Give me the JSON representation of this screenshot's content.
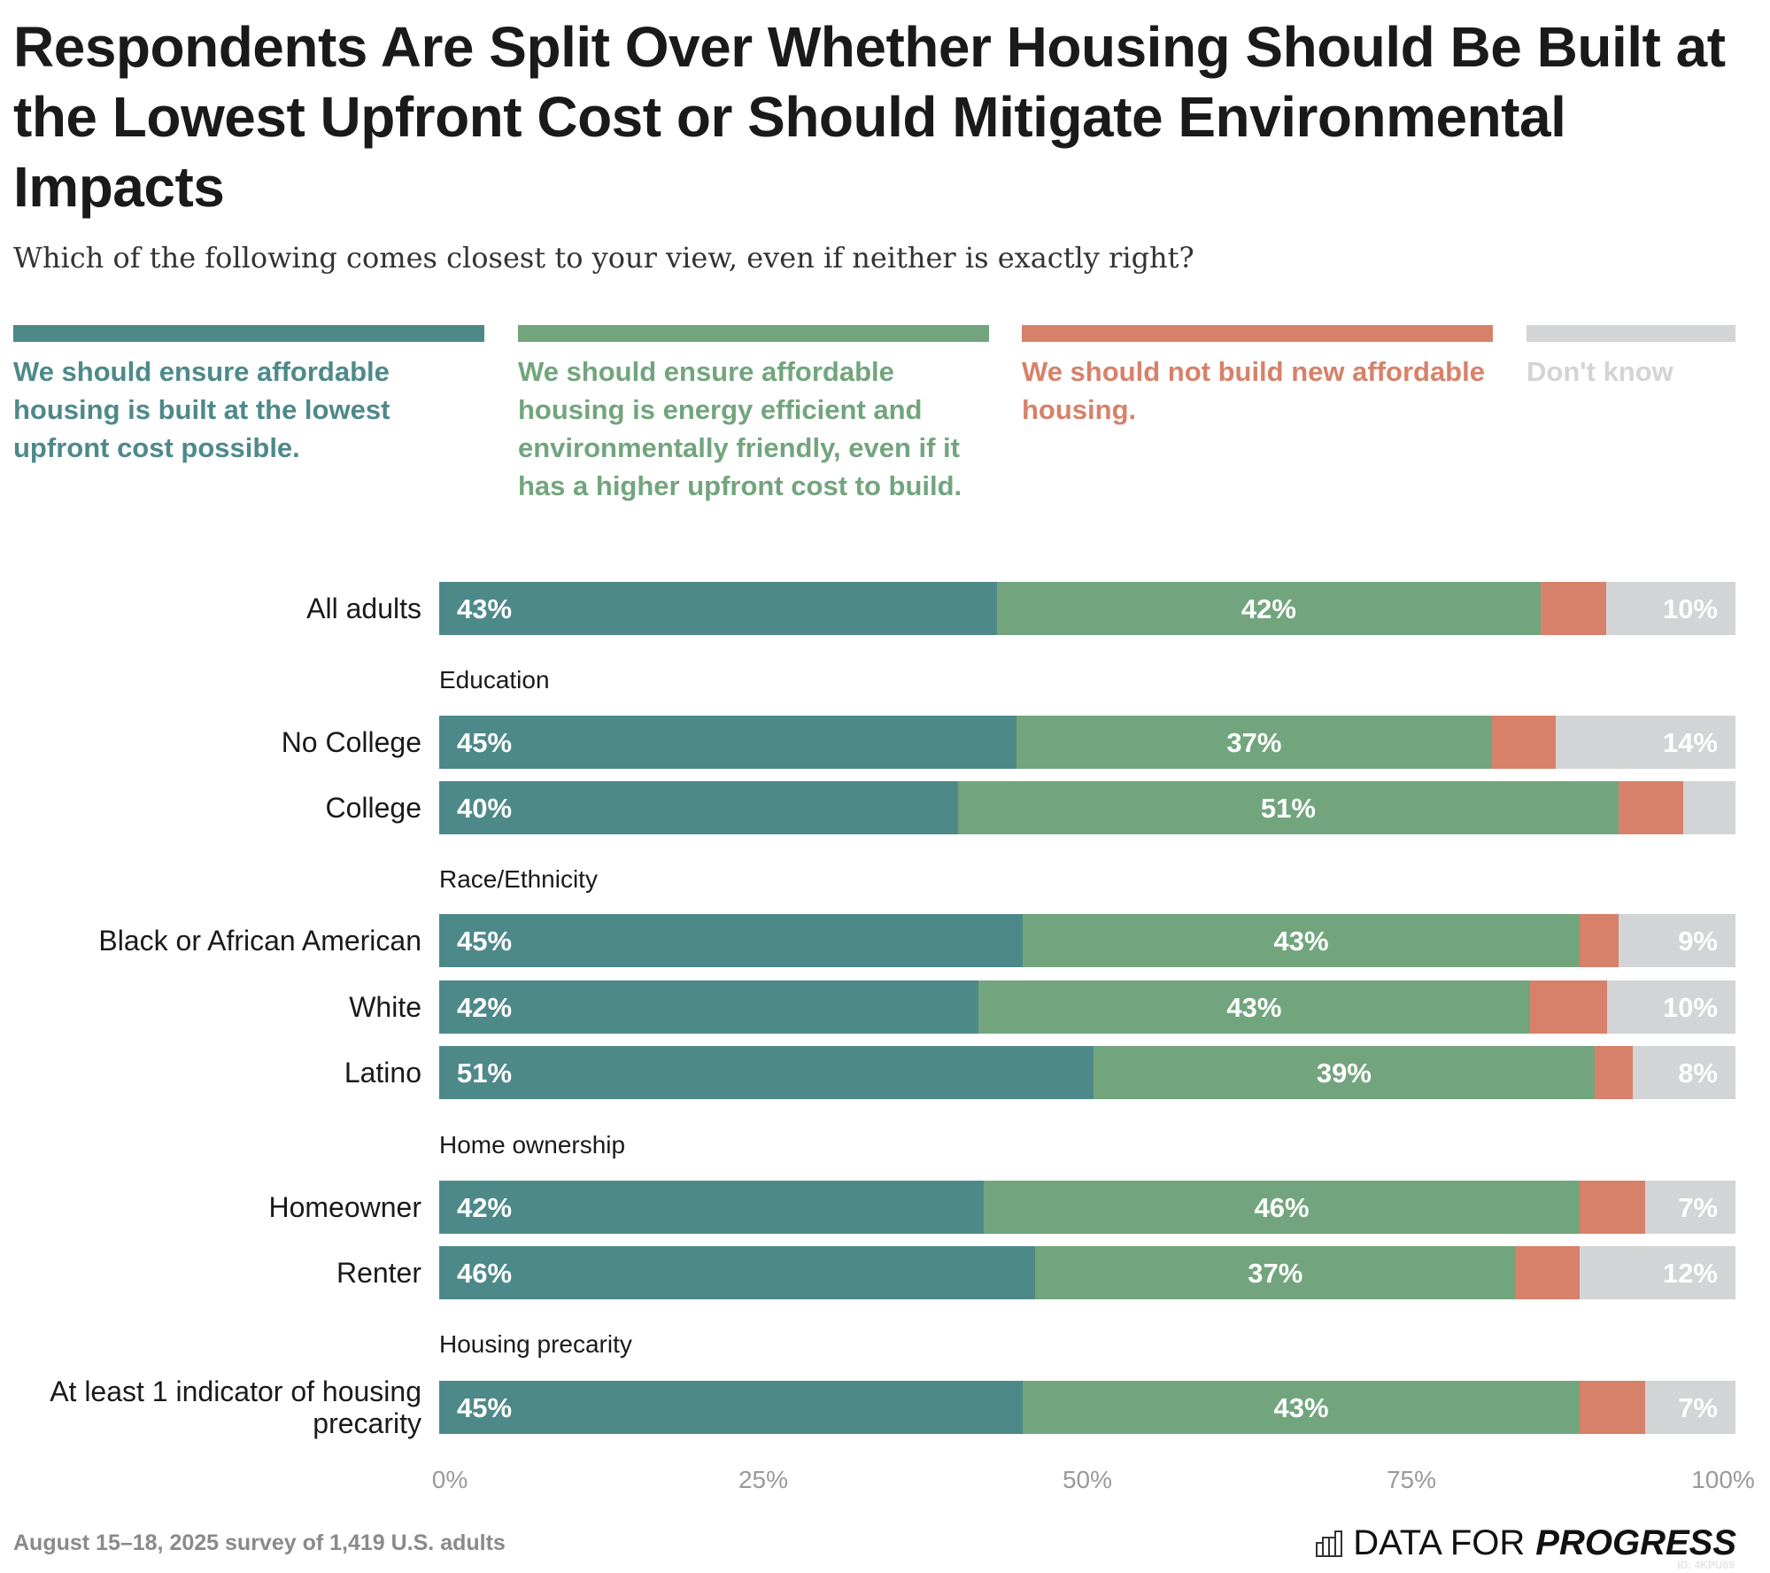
{
  "title": "Respondents Are Split Over Whether Housing Should Be Built at the Lowest Upfront Cost or Should Mitigate Environmental Impacts",
  "subtitle": "Which of the following comes closest to your view, even if neither is exactly right?",
  "footer": "August 15–18, 2025 survey of 1,419 U.S. adults",
  "logo": {
    "text_light": "DATA FOR",
    "text_bold": "PROGRESS",
    "id": "ID: 4KPU69",
    "icon": "bar-chart-icon"
  },
  "chart_data": {
    "type": "bar",
    "orientation": "horizontal",
    "stacked": true,
    "xlim": [
      0,
      100
    ],
    "x_ticks": [
      "0%",
      "25%",
      "50%",
      "75%",
      "100%"
    ],
    "grid": false,
    "legend_placement": "top",
    "series": [
      {
        "name": "We should ensure affordable housing is built at the lowest upfront cost possible.",
        "color": "#4e898a"
      },
      {
        "name": "We should ensure affordable housing is energy efficient and environmentally friendly, even if it has a higher upfront cost to build.",
        "color": "#72a57d"
      },
      {
        "name": "We should not build new affordable housing.",
        "color": "#d7816a"
      },
      {
        "name": "Don't know",
        "color": "#d3d4d6"
      }
    ],
    "rows": [
      {
        "group": "",
        "label": "All adults",
        "values": [
          43,
          42,
          5,
          10
        ],
        "labels": [
          "43%",
          "42%",
          "",
          "10%"
        ]
      },
      {
        "group": "Education",
        "label": "No College",
        "values": [
          45,
          37,
          5,
          14
        ],
        "labels": [
          "45%",
          "37%",
          "",
          "14%"
        ]
      },
      {
        "group": "Education",
        "label": "College",
        "values": [
          40,
          51,
          5,
          4
        ],
        "labels": [
          "40%",
          "51%",
          "",
          ""
        ]
      },
      {
        "group": "Race/Ethnicity",
        "label": "Black or African American",
        "values": [
          45,
          43,
          3,
          9
        ],
        "labels": [
          "45%",
          "43%",
          "",
          "9%"
        ]
      },
      {
        "group": "Race/Ethnicity",
        "label": "White",
        "values": [
          42,
          43,
          6,
          10
        ],
        "labels": [
          "42%",
          "43%",
          "",
          "10%"
        ]
      },
      {
        "group": "Race/Ethnicity",
        "label": "Latino",
        "values": [
          51,
          39,
          3,
          8
        ],
        "labels": [
          "51%",
          "39%",
          "",
          "8%"
        ]
      },
      {
        "group": "Home ownership",
        "label": "Homeowner",
        "values": [
          42,
          46,
          5,
          7
        ],
        "labels": [
          "42%",
          "46%",
          "",
          "7%"
        ]
      },
      {
        "group": "Home ownership",
        "label": "Renter",
        "values": [
          46,
          37,
          5,
          12
        ],
        "labels": [
          "46%",
          "37%",
          "",
          "12%"
        ]
      },
      {
        "group": "Housing precarity",
        "label": "At least 1 indicator of housing precarity",
        "values": [
          45,
          43,
          5,
          7
        ],
        "labels": [
          "45%",
          "43%",
          "",
          "7%"
        ]
      }
    ]
  }
}
